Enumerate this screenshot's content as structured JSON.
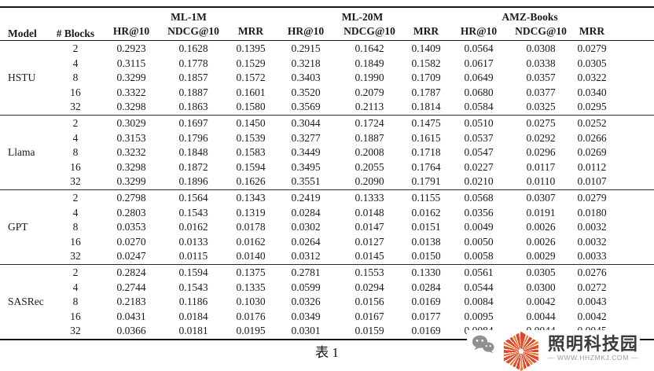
{
  "table": {
    "caption": "表 1",
    "header": {
      "model": "Model",
      "blocks": "# Blocks",
      "datasets": [
        "ML-1M",
        "ML-20M",
        "AMZ-Books"
      ],
      "metrics": [
        "HR@10",
        "NDCG@10",
        "MRR"
      ]
    },
    "groups": [
      {
        "model": "HSTU",
        "rows": [
          {
            "blocks": "2",
            "values": [
              "0.2923",
              "0.1628",
              "0.1395",
              "0.2915",
              "0.1642",
              "0.1409",
              "0.0564",
              "0.0308",
              "0.0279"
            ]
          },
          {
            "blocks": "4",
            "values": [
              "0.3115",
              "0.1778",
              "0.1529",
              "0.3218",
              "0.1849",
              "0.1582",
              "0.0617",
              "0.0338",
              "0.0305"
            ]
          },
          {
            "blocks": "8",
            "values": [
              "0.3299",
              "0.1857",
              "0.1572",
              "0.3403",
              "0.1990",
              "0.1709",
              "0.0649",
              "0.0357",
              "0.0322"
            ]
          },
          {
            "blocks": "16",
            "values": [
              "0.3322",
              "0.1887",
              "0.1601",
              "0.3520",
              "0.2079",
              "0.1787",
              "0.0680",
              "0.0377",
              "0.0340"
            ]
          },
          {
            "blocks": "32",
            "values": [
              "0.3298",
              "0.1863",
              "0.1580",
              "0.3569",
              "0.2113",
              "0.1814",
              "0.0584",
              "0.0325",
              "0.0295"
            ]
          }
        ]
      },
      {
        "model": "Llama",
        "rows": [
          {
            "blocks": "2",
            "values": [
              "0.3029",
              "0.1697",
              "0.1450",
              "0.3044",
              "0.1724",
              "0.1475",
              "0.0510",
              "0.0275",
              "0.0252"
            ]
          },
          {
            "blocks": "4",
            "values": [
              "0.3153",
              "0.1796",
              "0.1539",
              "0.3277",
              "0.1887",
              "0.1615",
              "0.0537",
              "0.0292",
              "0.0266"
            ]
          },
          {
            "blocks": "8",
            "values": [
              "0.3232",
              "0.1848",
              "0.1583",
              "0.3449",
              "0.2008",
              "0.1718",
              "0.0547",
              "0.0296",
              "0.0269"
            ]
          },
          {
            "blocks": "16",
            "values": [
              "0.3298",
              "0.1872",
              "0.1594",
              "0.3495",
              "0.2055",
              "0.1764",
              "0.0227",
              "0.0117",
              "0.0112"
            ]
          },
          {
            "blocks": "32",
            "values": [
              "0.3299",
              "0.1896",
              "0.1626",
              "0.3551",
              "0.2090",
              "0.1791",
              "0.0210",
              "0.0110",
              "0.0107"
            ]
          }
        ]
      },
      {
        "model": "GPT",
        "rows": [
          {
            "blocks": "2",
            "values": [
              "0.2798",
              "0.1564",
              "0.1343",
              "0.2419",
              "0.1333",
              "0.1155",
              "0.0568",
              "0.0307",
              "0.0279"
            ]
          },
          {
            "blocks": "4",
            "values": [
              "0.2803",
              "0.1543",
              "0.1319",
              "0.0284",
              "0.0148",
              "0.0162",
              "0.0356",
              "0.0191",
              "0.0180"
            ]
          },
          {
            "blocks": "8",
            "values": [
              "0.0353",
              "0.0162",
              "0.0178",
              "0.0302",
              "0.0147",
              "0.0151",
              "0.0049",
              "0.0026",
              "0.0032"
            ]
          },
          {
            "blocks": "16",
            "values": [
              "0.0270",
              "0.0133",
              "0.0162",
              "0.0264",
              "0.0127",
              "0.0138",
              "0.0050",
              "0.0026",
              "0.0032"
            ]
          },
          {
            "blocks": "32",
            "values": [
              "0.0247",
              "0.0115",
              "0.0140",
              "0.0312",
              "0.0145",
              "0.0150",
              "0.0058",
              "0.0029",
              "0.0033"
            ]
          }
        ]
      },
      {
        "model": "SASRec",
        "rows": [
          {
            "blocks": "2",
            "values": [
              "0.2824",
              "0.1594",
              "0.1375",
              "0.2781",
              "0.1553",
              "0.1330",
              "0.0561",
              "0.0305",
              "0.0276"
            ]
          },
          {
            "blocks": "4",
            "values": [
              "0.2744",
              "0.1543",
              "0.1335",
              "0.0599",
              "0.0294",
              "0.0284",
              "0.0544",
              "0.0300",
              "0.0272"
            ]
          },
          {
            "blocks": "8",
            "values": [
              "0.2183",
              "0.1186",
              "0.1030",
              "0.0326",
              "0.0156",
              "0.0169",
              "0.0084",
              "0.0042",
              "0.0043"
            ]
          },
          {
            "blocks": "16",
            "values": [
              "0.0431",
              "0.0184",
              "0.0176",
              "0.0349",
              "0.0167",
              "0.0177",
              "0.0095",
              "0.0044",
              "0.0042"
            ]
          },
          {
            "blocks": "32",
            "values": [
              "0.0366",
              "0.0181",
              "0.0195",
              "0.0301",
              "0.0159",
              "0.0169",
              "0.0084",
              "0.0044",
              "0.0045"
            ]
          }
        ]
      }
    ]
  },
  "watermark": {
    "brand": "照明科技园",
    "url": "— WWW.HHZMKJ.COM —",
    "icons": [
      "wechat-icon",
      "hexagon-starburst-logo"
    ],
    "colors": {
      "ray_red": "#e2452b",
      "ray_orange": "#ef7b26",
      "wechat_gray": "#8f8f8f",
      "brand_text": "#3a3a3a",
      "url_text": "#9b9b9b"
    }
  }
}
